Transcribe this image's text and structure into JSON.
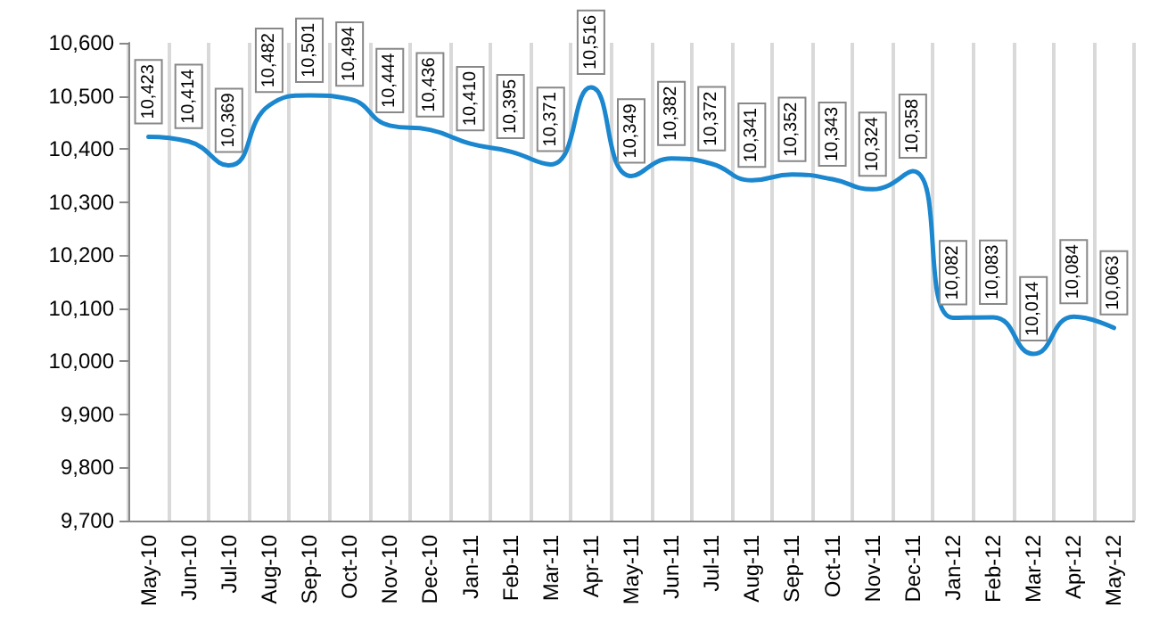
{
  "chart_data": {
    "type": "line",
    "categories": [
      "May-10",
      "Jun-10",
      "Jul-10",
      "Aug-10",
      "Sep-10",
      "Oct-10",
      "Nov-10",
      "Dec-10",
      "Jan-11",
      "Feb-11",
      "Mar-11",
      "Apr-11",
      "May-11",
      "Jun-11",
      "Jul-11",
      "Aug-11",
      "Sep-11",
      "Oct-11",
      "Nov-11",
      "Dec-11",
      "Jan-12",
      "Feb-12",
      "Mar-12",
      "Apr-12",
      "May-12"
    ],
    "series": [
      {
        "color": "#1b87cf",
        "values": [
          10423,
          10414,
          10369,
          10482,
          10501,
          10494,
          10444,
          10436,
          10410,
          10395,
          10371,
          10516,
          10349,
          10382,
          10372,
          10341,
          10352,
          10343,
          10324,
          10358,
          10082,
          10083,
          10014,
          10084,
          10063
        ],
        "value_labels": [
          "10,423",
          "10,414",
          "10,369",
          "10,482",
          "10,501",
          "10,494",
          "10,444",
          "10,436",
          "10,410",
          "10,395",
          "10,371",
          "10,516",
          "10,349",
          "10,382",
          "10,372",
          "10,341",
          "10,352",
          "10,343",
          "10,324",
          "10,358",
          "10,082",
          "10,083",
          "10,014",
          "10,084",
          "10,063"
        ]
      }
    ],
    "ylim": [
      9700,
      10600
    ],
    "yticks": [
      {
        "value": 9700,
        "label": "9,700"
      },
      {
        "value": 9800,
        "label": "9,800"
      },
      {
        "value": 9900,
        "label": "9,900"
      },
      {
        "value": 10000,
        "label": "10,000"
      },
      {
        "value": 10100,
        "label": "10,100"
      },
      {
        "value": 10200,
        "label": "10,200"
      },
      {
        "value": 10300,
        "label": "10,300"
      },
      {
        "value": 10400,
        "label": "10,400"
      },
      {
        "value": 10500,
        "label": "10,500"
      },
      {
        "value": 10600,
        "label": "10,600"
      }
    ],
    "grid": "x",
    "marker": "none",
    "line_style": "solid"
  }
}
